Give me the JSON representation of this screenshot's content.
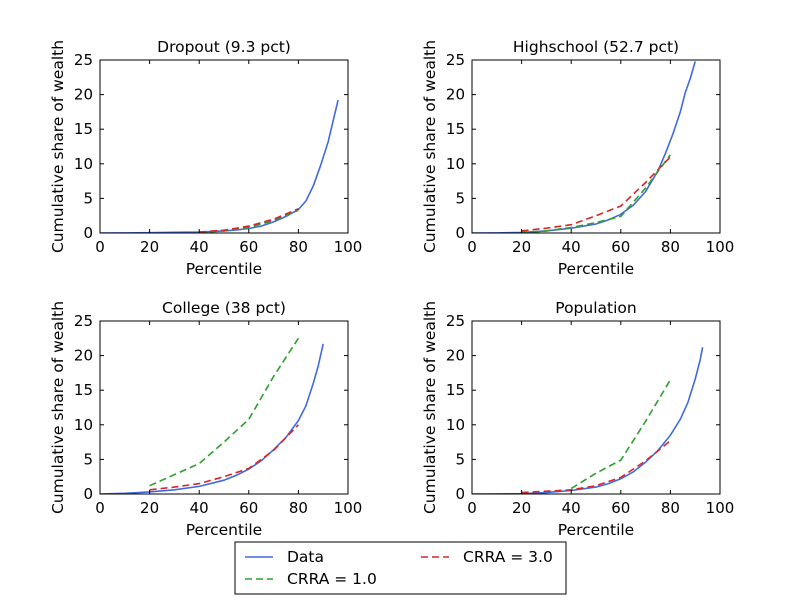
{
  "chart_data": [
    {
      "type": "line",
      "title": "Dropout (9.3 pct)",
      "xlabel": "Percentile",
      "ylabel": "Cumulative share of wealth",
      "xlim": [
        0,
        100
      ],
      "ylim": [
        0,
        25
      ],
      "xticks": [
        0,
        20,
        40,
        60,
        80,
        100
      ],
      "yticks": [
        0,
        5,
        10,
        15,
        20,
        25
      ],
      "series": [
        {
          "name": "Data",
          "style": "solid",
          "color": "#4169e1",
          "x": [
            0,
            10,
            20,
            30,
            40,
            50,
            55,
            60,
            65,
            70,
            75,
            80,
            83,
            86,
            89,
            92,
            94,
            96
          ],
          "y": [
            0,
            0.02,
            0.05,
            0.1,
            0.15,
            0.3,
            0.45,
            0.65,
            1.0,
            1.6,
            2.4,
            3.4,
            4.6,
            6.8,
            9.8,
            13.2,
            16.2,
            19.2
          ]
        },
        {
          "name": "CRRA = 1.0",
          "style": "dashed",
          "color": "#2ca02c",
          "x": [
            40,
            50,
            60,
            70,
            80
          ],
          "y": [
            0.1,
            0.3,
            0.8,
            1.8,
            3.3
          ]
        },
        {
          "name": "CRRA = 3.0",
          "style": "dashed",
          "color": "#d62728",
          "x": [
            40,
            50,
            60,
            70,
            80
          ],
          "y": [
            0.15,
            0.4,
            1.0,
            2.0,
            3.5
          ]
        }
      ]
    },
    {
      "type": "line",
      "title": "Highschool (52.7 pct)",
      "xlabel": "Percentile",
      "ylabel": "Cumulative share of wealth",
      "xlim": [
        0,
        100
      ],
      "ylim": [
        0,
        25
      ],
      "xticks": [
        0,
        20,
        40,
        60,
        80,
        100
      ],
      "yticks": [
        0,
        5,
        10,
        15,
        20,
        25
      ],
      "series": [
        {
          "name": "Data",
          "style": "solid",
          "color": "#4169e1",
          "x": [
            0,
            10,
            20,
            30,
            40,
            50,
            55,
            60,
            65,
            70,
            75,
            78,
            81,
            84,
            86,
            88,
            90
          ],
          "y": [
            0,
            0.02,
            0.08,
            0.3,
            0.7,
            1.3,
            1.9,
            2.7,
            4.0,
            6.0,
            9.0,
            11.5,
            14.3,
            17.5,
            20.3,
            22.3,
            24.8
          ]
        },
        {
          "name": "CRRA = 1.0",
          "style": "dashed",
          "color": "#2ca02c",
          "x": [
            20,
            30,
            40,
            50,
            60,
            70,
            80
          ],
          "y": [
            0.05,
            0.3,
            0.8,
            1.5,
            2.4,
            6.5,
            11.3
          ]
        },
        {
          "name": "CRRA = 3.0",
          "style": "dashed",
          "color": "#d62728",
          "x": [
            20,
            30,
            40,
            50,
            60,
            70,
            80
          ],
          "y": [
            0.3,
            0.7,
            1.2,
            2.5,
            3.9,
            7.3,
            11.0
          ]
        }
      ]
    },
    {
      "type": "line",
      "title": "College (38 pct)",
      "xlabel": "Percentile",
      "ylabel": "Cumulative share of wealth",
      "xlim": [
        0,
        100
      ],
      "ylim": [
        0,
        25
      ],
      "xticks": [
        0,
        20,
        40,
        60,
        80,
        100
      ],
      "yticks": [
        0,
        5,
        10,
        15,
        20,
        25
      ],
      "series": [
        {
          "name": "Data",
          "style": "solid",
          "color": "#4169e1",
          "x": [
            0,
            10,
            20,
            30,
            40,
            50,
            55,
            60,
            65,
            70,
            75,
            80,
            83,
            86,
            88,
            90
          ],
          "y": [
            0,
            0.1,
            0.3,
            0.6,
            1.1,
            2.0,
            2.7,
            3.6,
            4.8,
            6.4,
            8.2,
            10.6,
            12.7,
            16.0,
            18.5,
            21.7
          ]
        },
        {
          "name": "CRRA = 1.0",
          "style": "dashed",
          "color": "#2ca02c",
          "x": [
            20,
            30,
            40,
            50,
            60,
            70,
            80
          ],
          "y": [
            1.2,
            2.8,
            4.4,
            7.5,
            10.8,
            17.0,
            22.5
          ]
        },
        {
          "name": "CRRA = 3.0",
          "style": "dashed",
          "color": "#d62728",
          "x": [
            20,
            30,
            40,
            50,
            60,
            70,
            80
          ],
          "y": [
            0.6,
            1.0,
            1.5,
            2.5,
            3.7,
            6.3,
            10.0
          ]
        }
      ]
    },
    {
      "type": "line",
      "title": "Population",
      "xlabel": "Percentile",
      "ylabel": "Cumulative share of wealth",
      "xlim": [
        0,
        100
      ],
      "ylim": [
        0,
        25
      ],
      "xticks": [
        0,
        20,
        40,
        60,
        80,
        100
      ],
      "yticks": [
        0,
        5,
        10,
        15,
        20,
        25
      ],
      "series": [
        {
          "name": "Data",
          "style": "solid",
          "color": "#4169e1",
          "x": [
            0,
            10,
            20,
            30,
            40,
            50,
            55,
            60,
            65,
            70,
            75,
            80,
            84,
            87,
            90,
            92,
            93
          ],
          "y": [
            0,
            0.02,
            0.05,
            0.2,
            0.5,
            1.0,
            1.5,
            2.2,
            3.2,
            4.6,
            6.3,
            8.5,
            10.8,
            13.2,
            16.6,
            19.4,
            21.2
          ]
        },
        {
          "name": "CRRA = 1.0",
          "style": "dashed",
          "color": "#2ca02c",
          "x": [
            40,
            50,
            60,
            70,
            80
          ],
          "y": [
            0.8,
            3.0,
            4.9,
            10.5,
            16.5
          ]
        },
        {
          "name": "CRRA = 3.0",
          "style": "dashed",
          "color": "#d62728",
          "x": [
            20,
            30,
            40,
            50,
            60,
            70,
            80
          ],
          "y": [
            0.2,
            0.4,
            0.6,
            1.2,
            2.4,
            4.8,
            7.7
          ]
        }
      ]
    }
  ],
  "legend": {
    "placement": "bottom-center",
    "entries": [
      {
        "label": "Data",
        "style": "solid",
        "color": "#4169e1"
      },
      {
        "label": "CRRA = 1.0",
        "style": "dashed",
        "color": "#2ca02c"
      },
      {
        "label": "CRRA = 3.0",
        "style": "dashed",
        "color": "#d62728"
      }
    ]
  }
}
